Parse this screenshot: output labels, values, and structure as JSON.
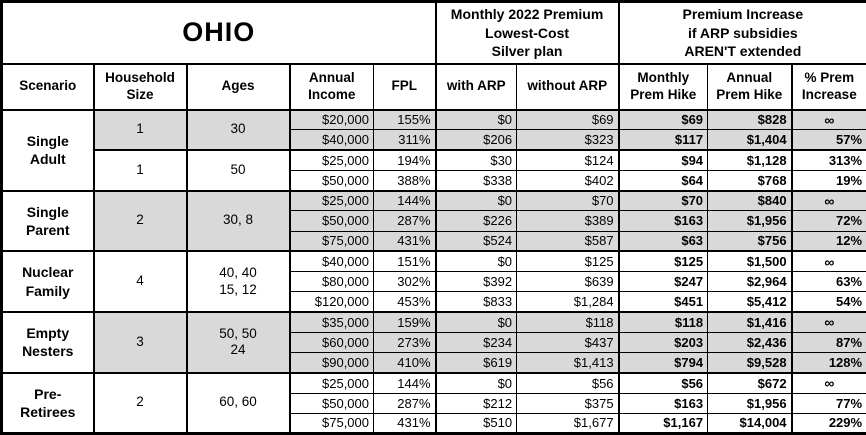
{
  "title": "OHIO",
  "section_headers": {
    "premium_plan": "Monthly 2022 Premium\nLowest-Cost\nSilver plan",
    "premium_increase": "Premium Increase\nif ARP subsidies\nAREN'T extended"
  },
  "column_headers": {
    "scenario": "Scenario",
    "household_size": "Household\nSize",
    "ages": "Ages",
    "annual_income": "Annual\nIncome",
    "fpl": "FPL",
    "with_arp": "with ARP",
    "without_arp": "without ARP",
    "monthly_hike": "Monthly\nPrem Hike",
    "annual_hike": "Annual\nPrem Hike",
    "pct_increase": "% Prem\nIncrease"
  },
  "infinity_symbol": "∞",
  "colors": {
    "shaded_row": "#d9d9d9",
    "border": "#000000",
    "background": "#ffffff",
    "text": "#000000"
  },
  "groups": [
    {
      "scenario": "Single\nAdult",
      "subgroups": [
        {
          "household_size": "1",
          "ages": "30",
          "shaded": true,
          "rows": [
            {
              "annual_income": "$20,000",
              "fpl": "155%",
              "with_arp": "$0",
              "without_arp": "$69",
              "monthly_hike": "$69",
              "annual_hike": "$828",
              "pct_increase": "∞"
            },
            {
              "annual_income": "$40,000",
              "fpl": "311%",
              "with_arp": "$206",
              "without_arp": "$323",
              "monthly_hike": "$117",
              "annual_hike": "$1,404",
              "pct_increase": "57%"
            }
          ]
        },
        {
          "household_size": "1",
          "ages": "50",
          "shaded": false,
          "rows": [
            {
              "annual_income": "$25,000",
              "fpl": "194%",
              "with_arp": "$30",
              "without_arp": "$124",
              "monthly_hike": "$94",
              "annual_hike": "$1,128",
              "pct_increase": "313%"
            },
            {
              "annual_income": "$50,000",
              "fpl": "388%",
              "with_arp": "$338",
              "without_arp": "$402",
              "monthly_hike": "$64",
              "annual_hike": "$768",
              "pct_increase": "19%"
            }
          ]
        }
      ]
    },
    {
      "scenario": "Single\nParent",
      "subgroups": [
        {
          "household_size": "2",
          "ages": "30, 8",
          "shaded": true,
          "rows": [
            {
              "annual_income": "$25,000",
              "fpl": "144%",
              "with_arp": "$0",
              "without_arp": "$70",
              "monthly_hike": "$70",
              "annual_hike": "$840",
              "pct_increase": "∞"
            },
            {
              "annual_income": "$50,000",
              "fpl": "287%",
              "with_arp": "$226",
              "without_arp": "$389",
              "monthly_hike": "$163",
              "annual_hike": "$1,956",
              "pct_increase": "72%"
            },
            {
              "annual_income": "$75,000",
              "fpl": "431%",
              "with_arp": "$524",
              "without_arp": "$587",
              "monthly_hike": "$63",
              "annual_hike": "$756",
              "pct_increase": "12%"
            }
          ]
        }
      ]
    },
    {
      "scenario": "Nuclear\nFamily",
      "subgroups": [
        {
          "household_size": "4",
          "ages": "40, 40\n15, 12",
          "shaded": false,
          "rows": [
            {
              "annual_income": "$40,000",
              "fpl": "151%",
              "with_arp": "$0",
              "without_arp": "$125",
              "monthly_hike": "$125",
              "annual_hike": "$1,500",
              "pct_increase": "∞"
            },
            {
              "annual_income": "$80,000",
              "fpl": "302%",
              "with_arp": "$392",
              "without_arp": "$639",
              "monthly_hike": "$247",
              "annual_hike": "$2,964",
              "pct_increase": "63%"
            },
            {
              "annual_income": "$120,000",
              "fpl": "453%",
              "with_arp": "$833",
              "without_arp": "$1,284",
              "monthly_hike": "$451",
              "annual_hike": "$5,412",
              "pct_increase": "54%"
            }
          ]
        }
      ]
    },
    {
      "scenario": "Empty\nNesters",
      "subgroups": [
        {
          "household_size": "3",
          "ages": "50, 50\n24",
          "shaded": true,
          "rows": [
            {
              "annual_income": "$35,000",
              "fpl": "159%",
              "with_arp": "$0",
              "without_arp": "$118",
              "monthly_hike": "$118",
              "annual_hike": "$1,416",
              "pct_increase": "∞"
            },
            {
              "annual_income": "$60,000",
              "fpl": "273%",
              "with_arp": "$234",
              "without_arp": "$437",
              "monthly_hike": "$203",
              "annual_hike": "$2,436",
              "pct_increase": "87%"
            },
            {
              "annual_income": "$90,000",
              "fpl": "410%",
              "with_arp": "$619",
              "without_arp": "$1,413",
              "monthly_hike": "$794",
              "annual_hike": "$9,528",
              "pct_increase": "128%"
            }
          ]
        }
      ]
    },
    {
      "scenario": "Pre-\nRetirees",
      "subgroups": [
        {
          "household_size": "2",
          "ages": "60, 60",
          "shaded": false,
          "rows": [
            {
              "annual_income": "$25,000",
              "fpl": "144%",
              "with_arp": "$0",
              "without_arp": "$56",
              "monthly_hike": "$56",
              "annual_hike": "$672",
              "pct_increase": "∞"
            },
            {
              "annual_income": "$50,000",
              "fpl": "287%",
              "with_arp": "$212",
              "without_arp": "$375",
              "monthly_hike": "$163",
              "annual_hike": "$1,956",
              "pct_increase": "77%"
            },
            {
              "annual_income": "$75,000",
              "fpl": "431%",
              "with_arp": "$510",
              "without_arp": "$1,677",
              "monthly_hike": "$1,167",
              "annual_hike": "$14,004",
              "pct_increase": "229%"
            }
          ]
        }
      ]
    }
  ]
}
